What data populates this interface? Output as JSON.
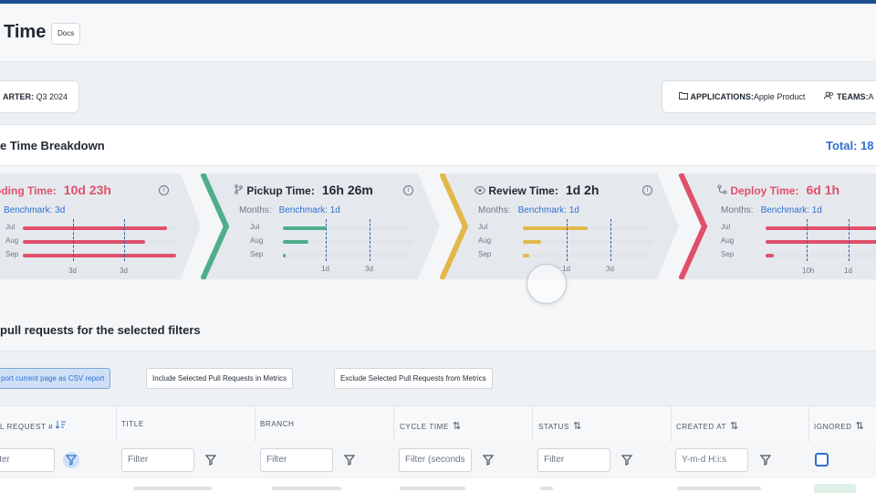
{
  "header": {
    "title": "Time",
    "docs_label": "Docs"
  },
  "filters": {
    "quarter_label": "ARTER:",
    "quarter_value": "Q3 2024",
    "applications_label": "APPLICATIONS:",
    "applications_value": "Apple Product",
    "teams_label": "TEAMS:",
    "teams_value": "A"
  },
  "breakdown": {
    "title": "e Time Breakdown",
    "total": "Total: 18"
  },
  "stages": [
    {
      "name": "oding Time:",
      "value": "10d 23h",
      "benchmark_label": "",
      "benchmark": "Benchmark: 3d",
      "color": "#e0506a",
      "months": [
        "Jul",
        "Aug",
        "Sep"
      ],
      "ticks": [
        "3d",
        "3d"
      ],
      "fill": [
        0.93,
        0.79,
        0.99
      ]
    },
    {
      "name": "Pickup Time:",
      "value": "16h 26m",
      "benchmark_label": "Months:",
      "benchmark": "Benchmark: 1d",
      "color": "#4fae8c",
      "months": [
        "Jul",
        "Aug",
        "Sep"
      ],
      "ticks": [
        "1d",
        "3d"
      ],
      "fill": [
        0.34,
        0.2,
        0.02
      ]
    },
    {
      "name": "Review Time:",
      "value": "1d 2h",
      "benchmark_label": "Months:",
      "benchmark": "Benchmark: 1d",
      "color": "#e2b84a",
      "months": [
        "Jul",
        "Aug",
        "Sep"
      ],
      "ticks": [
        "1d",
        "3d"
      ],
      "fill": [
        0.5,
        0.14,
        0.05
      ]
    },
    {
      "name": "Deploy Time:",
      "value": "6d 1h",
      "benchmark_label": "Months:",
      "benchmark": "Benchmark: 1d",
      "color": "#e0506a",
      "months": [
        "Jul",
        "Aug",
        "Sep"
      ],
      "ticks": [
        "10h",
        "1d"
      ],
      "fill": [
        1.0,
        1.0,
        0.06
      ]
    }
  ],
  "pr_section": {
    "title": "pull requests for the selected filters"
  },
  "actions": {
    "export": "port current page as CSV report",
    "include": "Include Selected Pull Requests in Metrics",
    "exclude": "Exclude Selected Pull Requests from Metrics"
  },
  "table": {
    "columns": [
      "L REQUEST #",
      "TITLE",
      "BRANCH",
      "CYCLE TIME",
      "STATUS",
      "CREATED AT",
      "IGNORED"
    ],
    "filters": [
      "lter",
      "Filter",
      "Filter",
      "Filter (seconds",
      "Filter",
      "Y-m-d H:i:s"
    ]
  }
}
